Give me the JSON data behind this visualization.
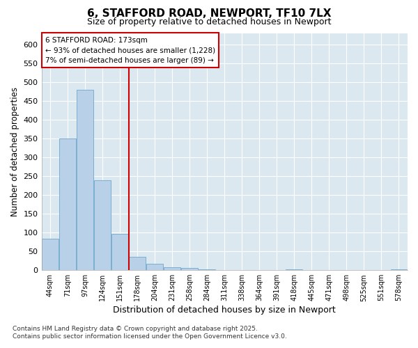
{
  "title": "6, STAFFORD ROAD, NEWPORT, TF10 7LX",
  "subtitle": "Size of property relative to detached houses in Newport",
  "xlabel": "Distribution of detached houses by size in Newport",
  "ylabel": "Number of detached properties",
  "categories": [
    "44sqm",
    "71sqm",
    "97sqm",
    "124sqm",
    "151sqm",
    "178sqm",
    "204sqm",
    "231sqm",
    "258sqm",
    "284sqm",
    "311sqm",
    "338sqm",
    "364sqm",
    "391sqm",
    "418sqm",
    "445sqm",
    "471sqm",
    "498sqm",
    "525sqm",
    "551sqm",
    "578sqm"
  ],
  "values": [
    83,
    350,
    480,
    238,
    97,
    35,
    17,
    7,
    5,
    3,
    0,
    0,
    0,
    0,
    2,
    0,
    0,
    0,
    0,
    0,
    3
  ],
  "bar_color": "#b8d0e8",
  "bar_edge_color": "#7aaed0",
  "vline_x_index": 5,
  "vline_color": "#cc0000",
  "annotation_title": "6 STAFFORD ROAD: 173sqm",
  "annotation_line1": "← 93% of detached houses are smaller (1,228)",
  "annotation_line2": "7% of semi-detached houses are larger (89) →",
  "annotation_box_color": "#cc0000",
  "ylim": [
    0,
    630
  ],
  "yticks": [
    0,
    50,
    100,
    150,
    200,
    250,
    300,
    350,
    400,
    450,
    500,
    550,
    600
  ],
  "footnote1": "Contains HM Land Registry data © Crown copyright and database right 2025.",
  "footnote2": "Contains public sector information licensed under the Open Government Licence v3.0.",
  "fig_bg_color": "#ffffff",
  "plot_bg_color": "#dce8f0"
}
